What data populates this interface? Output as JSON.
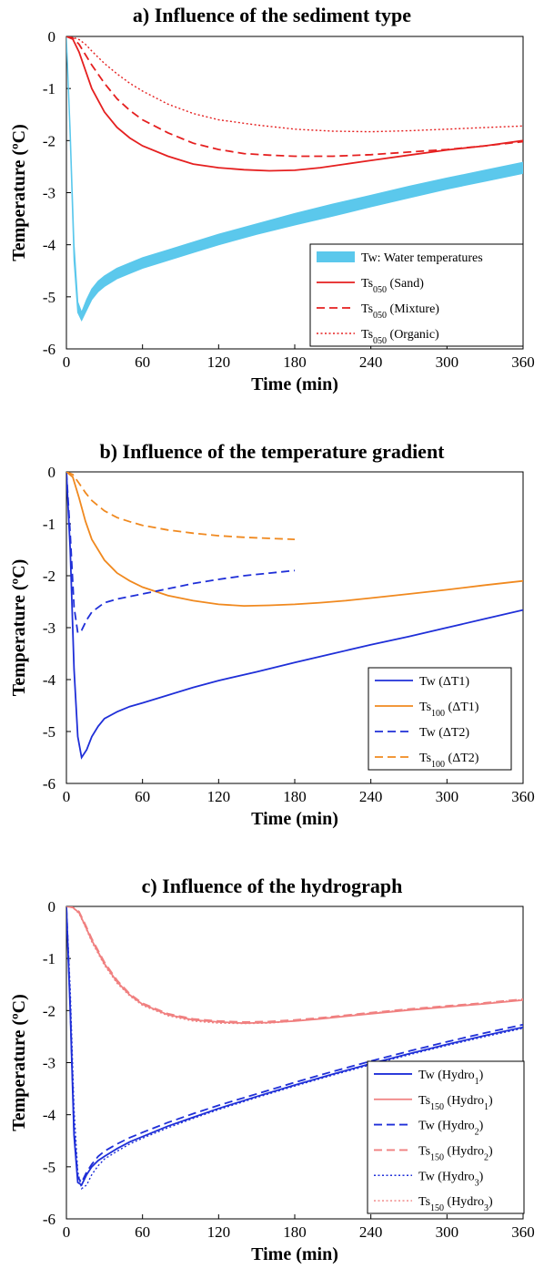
{
  "chart_data": [
    {
      "id": "a",
      "type": "line",
      "title": "a) Influence of the sediment type",
      "xlabel": "Time (min)",
      "ylabel": "Temperature (ºC)",
      "xlim": [
        0,
        360
      ],
      "ylim": [
        -6,
        0
      ],
      "xticks": [
        "0",
        "60",
        "120",
        "180",
        "240",
        "300",
        "360"
      ],
      "yticks": [
        "0",
        "-1",
        "-2",
        "-3",
        "-4",
        "-5",
        "-6"
      ],
      "grid": false,
      "legend_position": "bottom-right",
      "series": [
        {
          "name": "Tw: Water temperatures",
          "kind": "band",
          "color": "#5bc8ec",
          "x": [
            0,
            3,
            6,
            9,
            12,
            16,
            20,
            25,
            30,
            40,
            50,
            60,
            80,
            100,
            120,
            150,
            180,
            210,
            240,
            270,
            300,
            330,
            360
          ],
          "upper": [
            0,
            -1.8,
            -4.0,
            -5.1,
            -5.3,
            -5.05,
            -4.85,
            -4.7,
            -4.6,
            -4.45,
            -4.35,
            -4.25,
            -4.1,
            -3.95,
            -3.8,
            -3.6,
            -3.4,
            -3.22,
            -3.05,
            -2.88,
            -2.72,
            -2.57,
            -2.42
          ],
          "lower": [
            0,
            -2.0,
            -4.3,
            -5.3,
            -5.45,
            -5.25,
            -5.05,
            -4.9,
            -4.8,
            -4.65,
            -4.55,
            -4.45,
            -4.3,
            -4.15,
            -4.0,
            -3.8,
            -3.62,
            -3.45,
            -3.27,
            -3.1,
            -2.93,
            -2.78,
            -2.63
          ]
        },
        {
          "name_parts": [
            "Ts",
            "050",
            " (Sand)"
          ],
          "kind": "line",
          "dash": "solid",
          "color": "#e52020",
          "x": [
            0,
            5,
            10,
            15,
            20,
            30,
            40,
            50,
            60,
            80,
            100,
            120,
            140,
            160,
            180,
            200,
            220,
            240,
            270,
            300,
            330,
            360
          ],
          "y": [
            0,
            -0.05,
            -0.3,
            -0.65,
            -1.0,
            -1.45,
            -1.75,
            -1.95,
            -2.1,
            -2.3,
            -2.45,
            -2.52,
            -2.56,
            -2.58,
            -2.57,
            -2.52,
            -2.45,
            -2.38,
            -2.28,
            -2.18,
            -2.1,
            -2.0
          ]
        },
        {
          "name_parts": [
            "Ts",
            "050",
            " (Mixture)"
          ],
          "kind": "line",
          "dash": "dashed",
          "color": "#e52020",
          "x": [
            0,
            5,
            10,
            15,
            20,
            30,
            40,
            50,
            60,
            80,
            100,
            120,
            140,
            160,
            180,
            210,
            240,
            270,
            300,
            330,
            360
          ],
          "y": [
            0,
            -0.03,
            -0.15,
            -0.35,
            -0.55,
            -0.9,
            -1.2,
            -1.42,
            -1.6,
            -1.85,
            -2.05,
            -2.17,
            -2.25,
            -2.28,
            -2.3,
            -2.3,
            -2.27,
            -2.22,
            -2.17,
            -2.1,
            -2.02
          ]
        },
        {
          "name_parts": [
            "Ts",
            "050",
            " (Organic)"
          ],
          "kind": "line",
          "dash": "dotted",
          "color": "#e52020",
          "x": [
            0,
            5,
            10,
            15,
            20,
            30,
            40,
            50,
            60,
            80,
            100,
            120,
            150,
            180,
            210,
            240,
            270,
            300,
            330,
            360
          ],
          "y": [
            0,
            -0.02,
            -0.06,
            -0.15,
            -0.28,
            -0.52,
            -0.72,
            -0.9,
            -1.05,
            -1.3,
            -1.48,
            -1.6,
            -1.7,
            -1.78,
            -1.82,
            -1.83,
            -1.81,
            -1.78,
            -1.75,
            -1.72
          ]
        }
      ]
    },
    {
      "id": "b",
      "type": "line",
      "title": "b) Influence of the temperature gradient",
      "xlabel": "Time (min)",
      "ylabel": "Temperature (ºC)",
      "xlim": [
        0,
        360
      ],
      "ylim": [
        -6,
        0
      ],
      "xticks": [
        "0",
        "60",
        "120",
        "180",
        "240",
        "300",
        "360"
      ],
      "yticks": [
        "0",
        "-1",
        "-2",
        "-3",
        "-4",
        "-5",
        "-6"
      ],
      "grid": false,
      "legend_position": "bottom-right",
      "series": [
        {
          "name_parts": [
            "Tw",
            "",
            "    (ΔT1)"
          ],
          "kind": "line",
          "dash": "solid",
          "color": "#1f2fd8",
          "x": [
            0,
            3,
            6,
            9,
            12,
            16,
            20,
            25,
            30,
            40,
            50,
            60,
            80,
            100,
            120,
            150,
            180,
            210,
            240,
            270,
            300,
            330,
            360
          ],
          "y": [
            0,
            -1.5,
            -3.8,
            -5.1,
            -5.5,
            -5.35,
            -5.1,
            -4.9,
            -4.75,
            -4.62,
            -4.52,
            -4.45,
            -4.3,
            -4.15,
            -4.02,
            -3.85,
            -3.67,
            -3.5,
            -3.33,
            -3.17,
            -3.0,
            -2.83,
            -2.66
          ]
        },
        {
          "name_parts": [
            "Ts",
            "100",
            " (ΔT1)"
          ],
          "kind": "line",
          "dash": "solid",
          "color": "#f0891f",
          "x": [
            0,
            5,
            10,
            15,
            20,
            30,
            40,
            50,
            60,
            80,
            100,
            120,
            140,
            160,
            180,
            200,
            220,
            240,
            270,
            300,
            330,
            360
          ],
          "y": [
            0,
            -0.1,
            -0.5,
            -0.95,
            -1.3,
            -1.7,
            -1.95,
            -2.1,
            -2.22,
            -2.38,
            -2.48,
            -2.55,
            -2.58,
            -2.57,
            -2.55,
            -2.52,
            -2.48,
            -2.43,
            -2.35,
            -2.27,
            -2.18,
            -2.1
          ]
        },
        {
          "name_parts": [
            "Tw",
            "",
            "    (ΔT2)"
          ],
          "kind": "line",
          "dash": "dashed",
          "color": "#1f2fd8",
          "x": [
            0,
            3,
            6,
            9,
            12,
            16,
            20,
            30,
            40,
            60,
            80,
            100,
            120,
            140,
            160,
            180
          ],
          "y": [
            0,
            -1.2,
            -2.6,
            -3.1,
            -3.05,
            -2.85,
            -2.7,
            -2.52,
            -2.45,
            -2.35,
            -2.25,
            -2.15,
            -2.07,
            -2.0,
            -1.95,
            -1.9
          ]
        },
        {
          "name_parts": [
            "Ts",
            "100",
            " (ΔT2)"
          ],
          "kind": "line",
          "dash": "dashed",
          "color": "#f0891f",
          "x": [
            0,
            5,
            10,
            15,
            20,
            30,
            40,
            50,
            60,
            80,
            100,
            120,
            140,
            160,
            180
          ],
          "y": [
            0,
            -0.05,
            -0.22,
            -0.4,
            -0.55,
            -0.75,
            -0.88,
            -0.96,
            -1.03,
            -1.12,
            -1.18,
            -1.23,
            -1.26,
            -1.28,
            -1.3
          ]
        }
      ]
    },
    {
      "id": "c",
      "type": "line",
      "title": "c) Influence of the hydrograph",
      "xlabel": "Time (min)",
      "ylabel": "Temperature (ºC)",
      "xlim": [
        0,
        360
      ],
      "ylim": [
        -6,
        0
      ],
      "xticks": [
        "0",
        "60",
        "120",
        "180",
        "240",
        "300",
        "360"
      ],
      "yticks": [
        "0",
        "-1",
        "-2",
        "-3",
        "-4",
        "-5",
        "-6"
      ],
      "grid": false,
      "legend_position": "bottom-right",
      "series": [
        {
          "name_parts": [
            "Tw",
            "",
            "    (Hydro",
            "1",
            ")"
          ],
          "kind": "line",
          "dash": "solid",
          "color": "#1f2fd8",
          "x": [
            0,
            3,
            6,
            9,
            12,
            16,
            20,
            25,
            30,
            40,
            50,
            60,
            80,
            100,
            120,
            150,
            180,
            210,
            240,
            270,
            300,
            330,
            360
          ],
          "y": [
            0,
            -2.0,
            -4.4,
            -5.3,
            -5.35,
            -5.15,
            -5.0,
            -4.88,
            -4.8,
            -4.65,
            -4.52,
            -4.42,
            -4.22,
            -4.05,
            -3.88,
            -3.65,
            -3.43,
            -3.22,
            -3.02,
            -2.83,
            -2.65,
            -2.48,
            -2.32
          ]
        },
        {
          "name_parts": [
            "Ts",
            "150",
            " (Hydro",
            "1",
            ")"
          ],
          "kind": "line",
          "dash": "solid",
          "color": "#f08080",
          "x": [
            0,
            5,
            10,
            15,
            20,
            30,
            40,
            50,
            60,
            80,
            100,
            120,
            140,
            160,
            180,
            200,
            220,
            240,
            270,
            300,
            330,
            360
          ],
          "y": [
            0,
            -0.02,
            -0.12,
            -0.38,
            -0.65,
            -1.1,
            -1.45,
            -1.7,
            -1.88,
            -2.08,
            -2.18,
            -2.22,
            -2.24,
            -2.23,
            -2.2,
            -2.16,
            -2.11,
            -2.06,
            -1.99,
            -1.93,
            -1.87,
            -1.8
          ]
        },
        {
          "name_parts": [
            "Tw",
            "",
            "    (Hydro",
            "2",
            ")"
          ],
          "kind": "line",
          "dash": "dashed",
          "color": "#1f2fd8",
          "x": [
            0,
            3,
            6,
            9,
            12,
            16,
            20,
            25,
            30,
            40,
            50,
            60,
            80,
            100,
            120,
            150,
            180,
            210,
            240,
            270,
            300,
            330,
            360
          ],
          "y": [
            0,
            -1.9,
            -4.3,
            -5.2,
            -5.3,
            -5.1,
            -4.95,
            -4.8,
            -4.7,
            -4.56,
            -4.44,
            -4.34,
            -4.15,
            -3.98,
            -3.82,
            -3.6,
            -3.38,
            -3.17,
            -2.97,
            -2.78,
            -2.6,
            -2.43,
            -2.27
          ]
        },
        {
          "name_parts": [
            "Ts",
            "150",
            " (Hydro",
            "2",
            ")"
          ],
          "kind": "line",
          "dash": "dashed",
          "color": "#f08080",
          "x": [
            0,
            5,
            10,
            15,
            20,
            30,
            40,
            50,
            60,
            80,
            100,
            120,
            140,
            160,
            180,
            200,
            220,
            240,
            270,
            300,
            330,
            360
          ],
          "y": [
            0,
            -0.02,
            -0.1,
            -0.35,
            -0.62,
            -1.07,
            -1.42,
            -1.68,
            -1.86,
            -2.06,
            -2.16,
            -2.2,
            -2.22,
            -2.21,
            -2.18,
            -2.14,
            -2.09,
            -2.04,
            -1.97,
            -1.91,
            -1.85,
            -1.78
          ]
        },
        {
          "name_parts": [
            "Tw",
            "",
            "    (Hydro",
            "3",
            ")"
          ],
          "kind": "line",
          "dash": "dotted",
          "color": "#1f2fd8",
          "x": [
            0,
            3,
            6,
            9,
            12,
            16,
            20,
            25,
            30,
            40,
            50,
            60,
            80,
            100,
            120,
            150,
            180,
            210,
            240,
            270,
            300,
            330,
            360
          ],
          "y": [
            0,
            -1.6,
            -3.9,
            -5.1,
            -5.42,
            -5.35,
            -5.15,
            -4.98,
            -4.85,
            -4.7,
            -4.56,
            -4.45,
            -4.25,
            -4.07,
            -3.9,
            -3.67,
            -3.45,
            -3.24,
            -3.04,
            -2.85,
            -2.67,
            -2.5,
            -2.34
          ]
        },
        {
          "name_parts": [
            "Ts",
            "150",
            " (Hydro",
            "3",
            ")"
          ],
          "kind": "line",
          "dash": "dotted",
          "color": "#f08080",
          "x": [
            0,
            5,
            10,
            15,
            20,
            30,
            40,
            50,
            60,
            80,
            100,
            120,
            140,
            160,
            180,
            200,
            220,
            240,
            270,
            300,
            330,
            360
          ],
          "y": [
            0,
            -0.02,
            -0.14,
            -0.4,
            -0.68,
            -1.13,
            -1.48,
            -1.72,
            -1.9,
            -2.1,
            -2.2,
            -2.24,
            -2.25,
            -2.24,
            -2.2,
            -2.15,
            -2.1,
            -2.05,
            -1.98,
            -1.92,
            -1.86,
            -1.79
          ]
        }
      ]
    }
  ]
}
